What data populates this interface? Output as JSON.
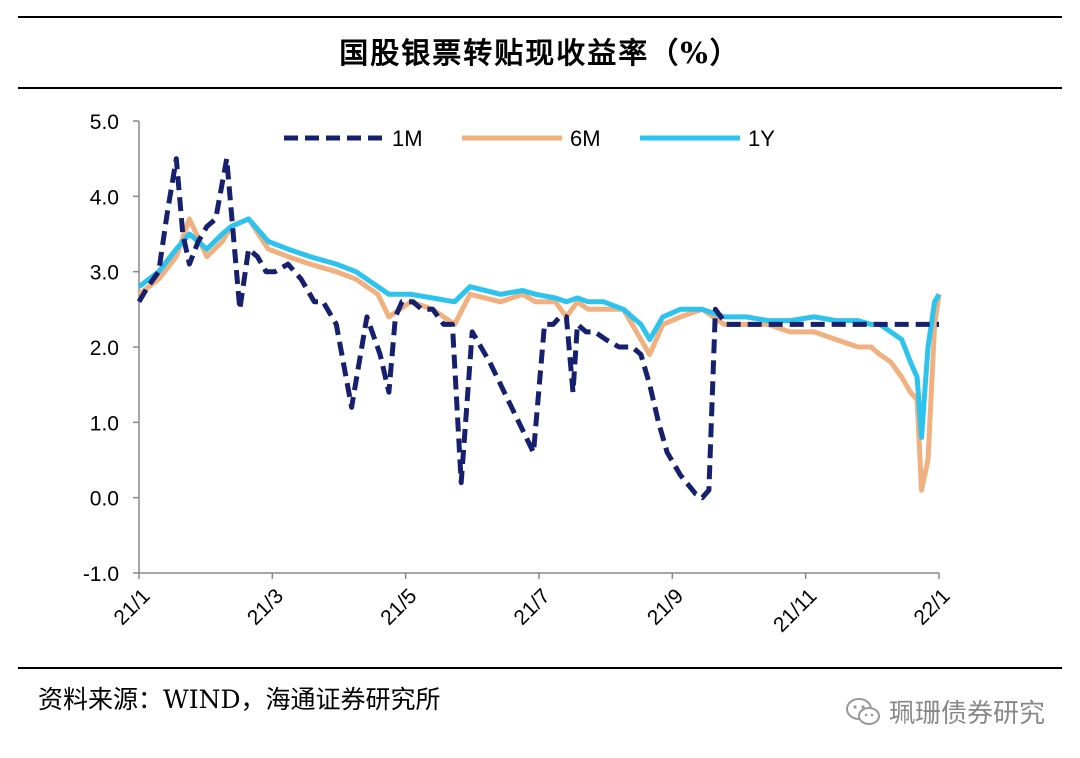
{
  "source": "资料来源：WIND，海通证券研究所",
  "watermark": {
    "text": "珮珊债券研究",
    "icon": "wechat-icon"
  },
  "chart_data": {
    "type": "line",
    "title": "国股银票转贴现收益率（%）",
    "xlabel": "",
    "ylabel": "",
    "ylim": [
      -1.0,
      5.0
    ],
    "yticks": [
      "5.0",
      "4.0",
      "3.0",
      "2.0",
      "1.0",
      "0.0",
      "-1.0"
    ],
    "xlim": [
      "2021-01-01",
      "2022-01-01"
    ],
    "xticks": [
      "21/1",
      "21/3",
      "21/5",
      "21/7",
      "21/9",
      "21/11",
      "22/1"
    ],
    "grid": false,
    "legend": "top-center",
    "series": [
      {
        "name": "1M",
        "color": "#16206e",
        "style": "dashed",
        "x": [
          "2021-01-01",
          "2021-01-05",
          "2021-01-10",
          "2021-01-14",
          "2021-01-18",
          "2021-01-21",
          "2021-01-24",
          "2021-01-28",
          "2021-02-01",
          "2021-02-05",
          "2021-02-10",
          "2021-02-16",
          "2021-02-20",
          "2021-02-24",
          "2021-02-28",
          "2021-03-04",
          "2021-03-10",
          "2021-03-16",
          "2021-03-22",
          "2021-03-26",
          "2021-04-01",
          "2021-04-08",
          "2021-04-15",
          "2021-04-21",
          "2021-04-25",
          "2021-04-28",
          "2021-05-01",
          "2021-05-06",
          "2021-05-10",
          "2021-05-15",
          "2021-05-20",
          "2021-05-24",
          "2021-05-28",
          "2021-06-02",
          "2021-06-10",
          "2021-06-20",
          "2021-06-30",
          "2021-07-05",
          "2021-07-09",
          "2021-07-12",
          "2021-07-15",
          "2021-07-18",
          "2021-07-20",
          "2021-07-24",
          "2021-07-28",
          "2021-08-02",
          "2021-08-08",
          "2021-08-14",
          "2021-08-18",
          "2021-08-22",
          "2021-08-26",
          "2021-08-30",
          "2021-09-05",
          "2021-09-12",
          "2021-09-15",
          "2021-09-18",
          "2021-09-21",
          "2021-09-26",
          "2021-10-05",
          "2021-10-12",
          "2021-10-20",
          "2021-10-28",
          "2021-11-05",
          "2021-11-12",
          "2021-11-20",
          "2021-11-25",
          "2021-11-30",
          "2021-12-04",
          "2021-12-08",
          "2021-12-12",
          "2021-12-16",
          "2021-12-20",
          "2021-12-24",
          "2021-12-27",
          "2021-12-30",
          "2022-01-01"
        ],
        "values": [
          2.6,
          2.8,
          3.0,
          3.8,
          4.5,
          3.5,
          3.1,
          3.4,
          3.6,
          3.7,
          4.5,
          2.5,
          3.3,
          3.2,
          3.0,
          3.0,
          3.1,
          2.9,
          2.6,
          2.6,
          2.3,
          1.2,
          2.4,
          1.9,
          1.4,
          2.4,
          2.6,
          2.6,
          2.5,
          2.5,
          2.3,
          2.3,
          0.2,
          2.2,
          1.8,
          1.2,
          0.6,
          2.3,
          2.3,
          2.4,
          2.4,
          1.4,
          2.3,
          2.2,
          2.2,
          2.1,
          2.0,
          2.0,
          1.9,
          1.5,
          1.0,
          0.6,
          0.3,
          0.05,
          0.0,
          0.1,
          2.5,
          2.3,
          2.3,
          2.3,
          2.3,
          2.3,
          2.3,
          2.3,
          2.3,
          2.3,
          2.3,
          2.3,
          2.3,
          2.3,
          2.3,
          2.3,
          2.3,
          2.3,
          2.3,
          2.3
        ]
      },
      {
        "name": "6M",
        "color": "#f0b080",
        "style": "solid",
        "x": [
          "2021-01-01",
          "2021-01-10",
          "2021-01-18",
          "2021-01-24",
          "2021-02-01",
          "2021-02-08",
          "2021-02-12",
          "2021-02-20",
          "2021-03-01",
          "2021-03-10",
          "2021-03-20",
          "2021-04-01",
          "2021-04-10",
          "2021-04-20",
          "2021-04-25",
          "2021-05-05",
          "2021-05-15",
          "2021-05-25",
          "2021-06-01",
          "2021-06-15",
          "2021-06-25",
          "2021-07-01",
          "2021-07-10",
          "2021-07-15",
          "2021-07-20",
          "2021-07-25",
          "2021-08-01",
          "2021-08-10",
          "2021-08-18",
          "2021-08-22",
          "2021-08-28",
          "2021-09-05",
          "2021-09-15",
          "2021-09-25",
          "2021-10-05",
          "2021-10-15",
          "2021-10-25",
          "2021-11-05",
          "2021-11-15",
          "2021-11-25",
          "2021-12-01",
          "2021-12-05",
          "2021-12-10",
          "2021-12-15",
          "2021-12-19",
          "2021-12-22",
          "2021-12-24",
          "2021-12-27",
          "2021-12-30",
          "2022-01-01"
        ],
        "values": [
          2.7,
          2.9,
          3.2,
          3.7,
          3.2,
          3.4,
          3.6,
          3.7,
          3.3,
          3.2,
          3.1,
          3.0,
          2.9,
          2.7,
          2.4,
          2.6,
          2.5,
          2.3,
          2.7,
          2.6,
          2.7,
          2.6,
          2.6,
          2.4,
          2.6,
          2.5,
          2.5,
          2.5,
          2.1,
          1.9,
          2.3,
          2.4,
          2.5,
          2.3,
          2.3,
          2.3,
          2.2,
          2.2,
          2.1,
          2.0,
          2.0,
          1.9,
          1.8,
          1.6,
          1.4,
          1.3,
          0.1,
          0.5,
          2.3,
          2.7
        ]
      },
      {
        "name": "1Y",
        "color": "#2cc3ef",
        "style": "solid",
        "x": [
          "2021-01-01",
          "2021-01-10",
          "2021-01-18",
          "2021-01-24",
          "2021-02-01",
          "2021-02-08",
          "2021-02-12",
          "2021-02-20",
          "2021-03-01",
          "2021-03-10",
          "2021-03-20",
          "2021-04-01",
          "2021-04-10",
          "2021-04-20",
          "2021-04-25",
          "2021-05-05",
          "2021-05-15",
          "2021-05-25",
          "2021-06-01",
          "2021-06-15",
          "2021-06-25",
          "2021-07-01",
          "2021-07-10",
          "2021-07-15",
          "2021-07-20",
          "2021-07-25",
          "2021-08-01",
          "2021-08-10",
          "2021-08-18",
          "2021-08-22",
          "2021-08-28",
          "2021-09-05",
          "2021-09-15",
          "2021-09-25",
          "2021-10-05",
          "2021-10-15",
          "2021-10-25",
          "2021-11-05",
          "2021-11-15",
          "2021-11-25",
          "2021-12-01",
          "2021-12-05",
          "2021-12-10",
          "2021-12-15",
          "2021-12-19",
          "2021-12-22",
          "2021-12-24",
          "2021-12-27",
          "2021-12-30",
          "2022-01-01"
        ],
        "values": [
          2.8,
          3.0,
          3.3,
          3.5,
          3.3,
          3.5,
          3.6,
          3.7,
          3.4,
          3.3,
          3.2,
          3.1,
          3.0,
          2.8,
          2.7,
          2.7,
          2.65,
          2.6,
          2.8,
          2.7,
          2.75,
          2.7,
          2.65,
          2.6,
          2.65,
          2.6,
          2.6,
          2.5,
          2.3,
          2.1,
          2.4,
          2.5,
          2.5,
          2.4,
          2.4,
          2.35,
          2.35,
          2.4,
          2.35,
          2.35,
          2.3,
          2.3,
          2.2,
          2.1,
          1.8,
          1.6,
          0.8,
          2.0,
          2.6,
          2.7
        ]
      }
    ]
  }
}
